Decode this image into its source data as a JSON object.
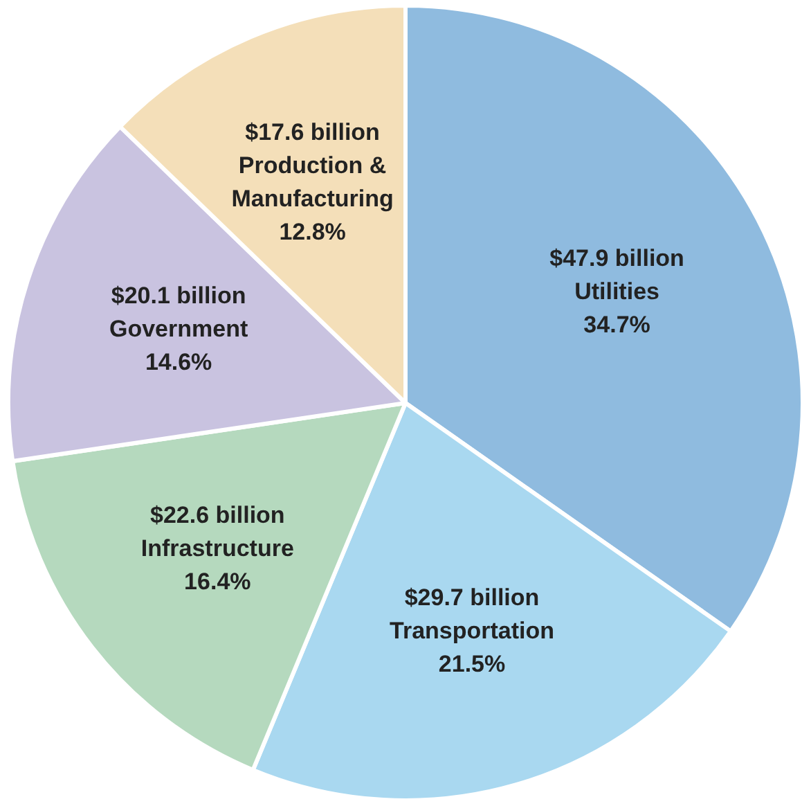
{
  "chart_data": {
    "type": "pie",
    "categories": [
      "Utilities",
      "Transportation",
      "Infrastructure",
      "Government",
      "Production & Manufacturing"
    ],
    "values": [
      47.9,
      29.7,
      22.6,
      20.1,
      17.6
    ],
    "value_labels": [
      "$47.9 billion",
      "$29.7 billion",
      "$22.6 billion",
      "$20.1 billion",
      "$17.6 billion"
    ],
    "colors": [
      "#8fbbdf",
      "#a9d8f0",
      "#b5d9be",
      "#c9c3e0",
      "#f4dfb9"
    ],
    "annotations": [
      {
        "text": "34.7%",
        "x": "Utilities"
      },
      {
        "text": "21.5%",
        "x": "Transportation"
      },
      {
        "text": "16.4%",
        "x": "Infrastructure"
      },
      {
        "text": "14.6%",
        "x": "Government"
      },
      {
        "text": "12.8%",
        "x": "Production & Manufacturing"
      }
    ],
    "legend": false
  }
}
